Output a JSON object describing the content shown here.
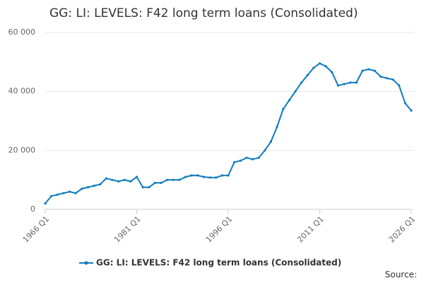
{
  "chart_data": {
    "type": "line",
    "title": "GG: LI: LEVELS: F42 long term loans (Consolidated)",
    "source": "Source:",
    "categories": [
      "1966 Q1",
      null,
      null,
      null,
      null,
      null,
      null,
      null,
      null,
      null,
      null,
      null,
      null,
      null,
      null,
      "1981 Q1",
      null,
      null,
      null,
      null,
      null,
      null,
      null,
      null,
      null,
      null,
      null,
      null,
      null,
      null,
      "1996 Q1",
      null,
      null,
      null,
      null,
      null,
      null,
      null,
      null,
      null,
      null,
      null,
      null,
      null,
      null,
      "2011 Q1",
      null,
      null,
      null,
      null,
      null,
      null,
      null,
      null,
      null,
      null,
      null,
      null,
      null,
      null,
      "2026 Q1"
    ],
    "series": [
      {
        "name": "GG: LI: LEVELS: F42 long term loans (Consolidated)",
        "color": "#0e7cc0",
        "values": [
          2000,
          4500,
          5000,
          5500,
          6000,
          5500,
          7000,
          7500,
          8000,
          8500,
          10500,
          10000,
          9500,
          10000,
          9500,
          11000,
          7500,
          7500,
          9000,
          9000,
          10000,
          10000,
          10000,
          11000,
          11500,
          11500,
          11000,
          10800,
          10800,
          11500,
          11500,
          16000,
          16500,
          17500,
          17000,
          17500,
          20000,
          23000,
          28000,
          34000,
          37000,
          40000,
          43000,
          45500,
          48000,
          49500,
          48500,
          46500,
          42000,
          42500,
          43000,
          43000,
          47000,
          47500,
          47000,
          45000,
          44500,
          44000,
          42000,
          36000,
          33500
        ]
      }
    ],
    "ylim": [
      0,
      60000
    ],
    "yticks": [
      0,
      {
        "value": 20000,
        "label": "20 000"
      },
      {
        "value": 40000,
        "label": "40 000"
      },
      {
        "value": 60000,
        "label": "60 000"
      }
    ],
    "grid": true
  }
}
